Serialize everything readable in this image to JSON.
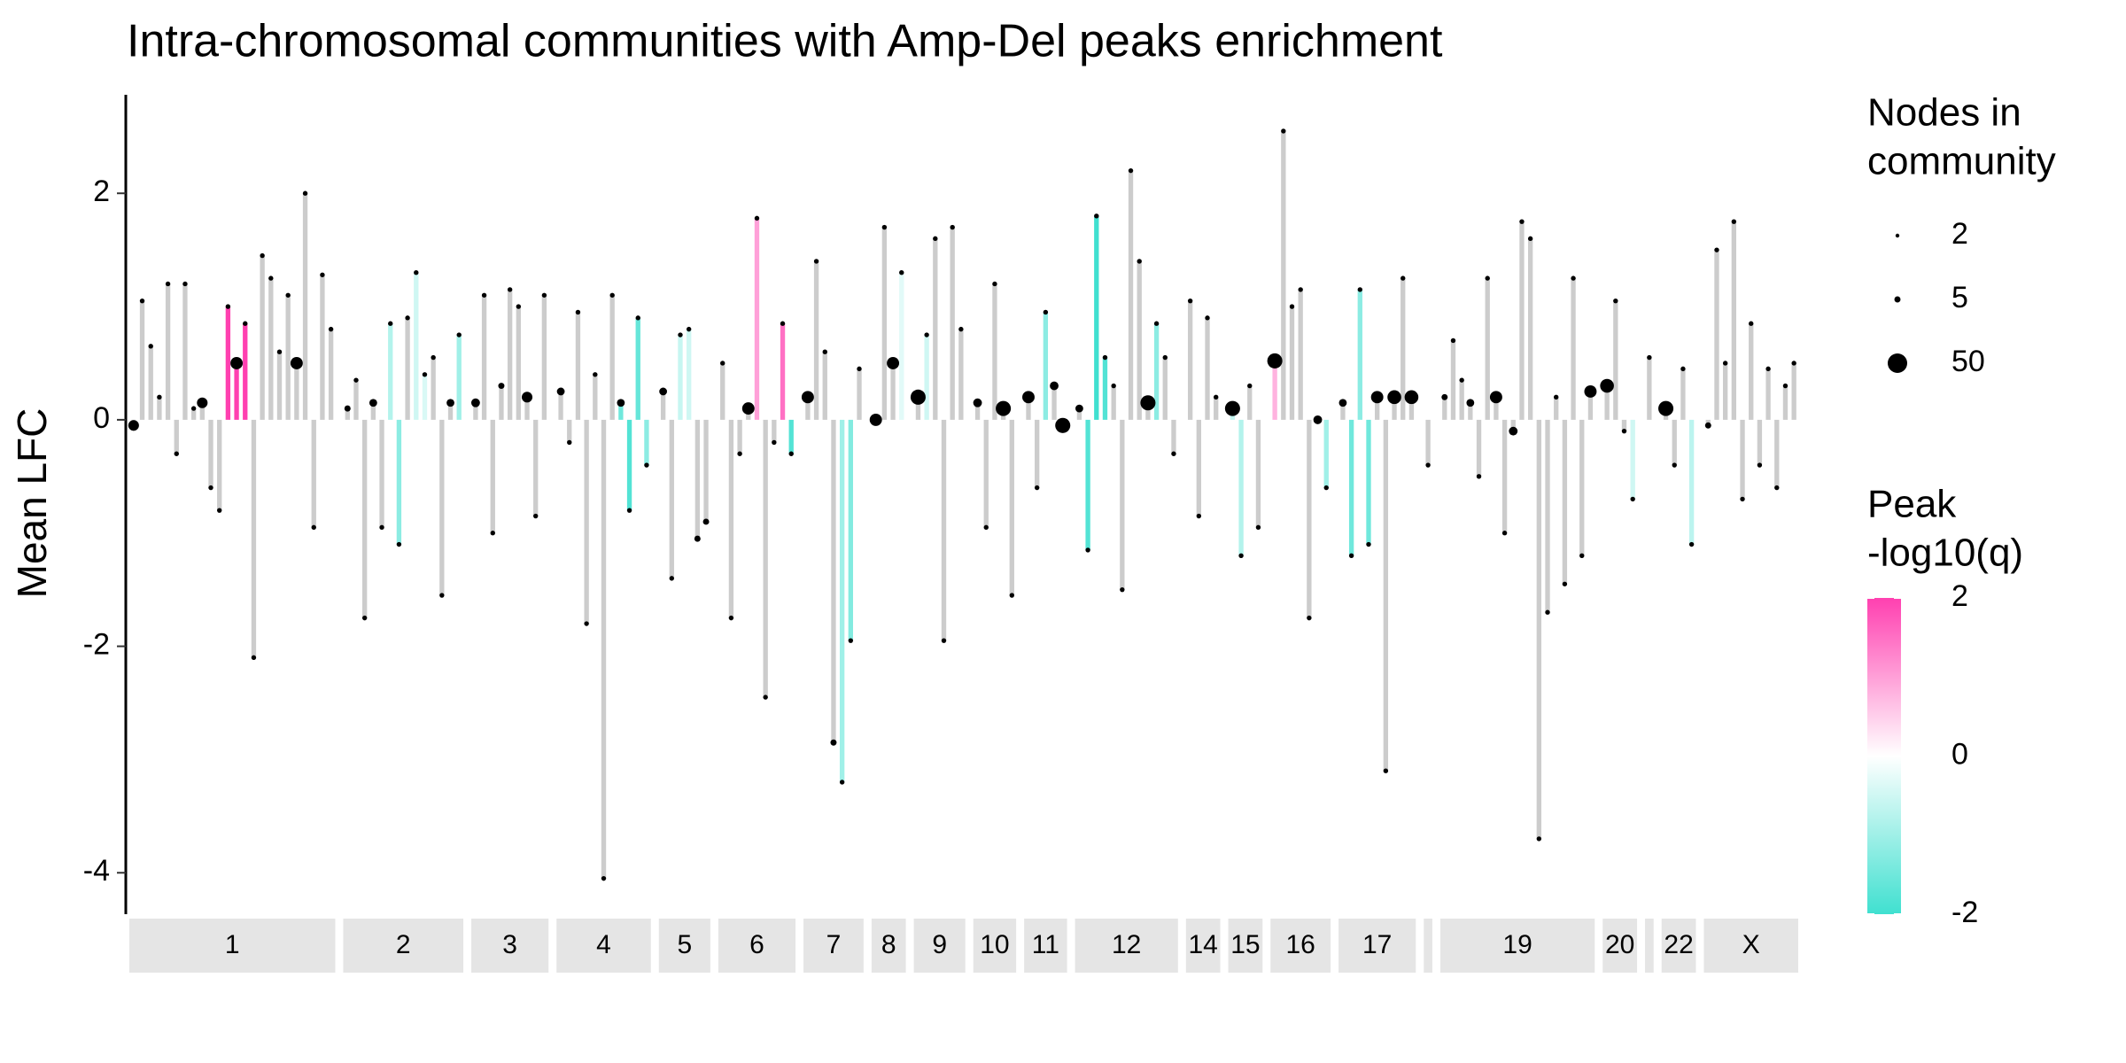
{
  "chart_data": {
    "type": "bar",
    "title": "Intra-chromosomal communities with Amp-Del peaks enrichment",
    "y_label": "Mean LFC",
    "ylim": [
      -4.35,
      2.87
    ],
    "yticks": [
      -4,
      -2,
      0,
      2
    ],
    "na_color": "#cccccc",
    "point_color": "#000000",
    "strip_color": "#e5e5e5",
    "size_legend": {
      "title": [
        "Nodes in",
        "community"
      ],
      "values": [
        2,
        5,
        50
      ]
    },
    "color_legend": {
      "title": [
        "Peak",
        "-log10(q)"
      ],
      "lim": [
        -2,
        2
      ],
      "ticks": [
        -2,
        0,
        2
      ],
      "colors": [
        "#40e0d0",
        "#ffffff",
        "#ff40b0"
      ]
    },
    "facets": [
      {
        "label": "1",
        "values": [
          -0.05,
          1.05,
          0.65,
          0.2,
          1.2,
          -0.3,
          1.2,
          0.1,
          0.15,
          -0.6,
          -0.8,
          1.0,
          0.5,
          0.85,
          -2.1,
          1.45,
          1.25,
          0.6,
          1.1,
          0.5,
          2.0,
          -0.95,
          1.28,
          0.8
        ],
        "nodes": [
          15,
          3,
          3,
          3,
          3,
          3,
          3,
          3,
          15,
          3,
          3,
          3,
          20,
          3,
          3,
          3,
          3,
          3,
          3,
          20,
          3,
          3,
          3,
          3
        ],
        "peaks": [
          null,
          null,
          null,
          null,
          null,
          null,
          null,
          null,
          null,
          null,
          null,
          2,
          2,
          2,
          null,
          null,
          null,
          null,
          null,
          null,
          null,
          null,
          null,
          null
        ]
      },
      {
        "label": "2",
        "values": [
          0.1,
          0.35,
          -1.75,
          0.15,
          -0.95,
          0.85,
          -1.1,
          0.9,
          1.3,
          0.4,
          0.55,
          -1.55,
          0.15,
          0.75
        ],
        "nodes": [
          5,
          3,
          3,
          8,
          3,
          3,
          3,
          3,
          3,
          3,
          3,
          3,
          8,
          3
        ],
        "peaks": [
          null,
          null,
          null,
          null,
          null,
          -0.8,
          -1.2,
          null,
          -0.5,
          -0.4,
          null,
          null,
          null,
          -1
        ]
      },
      {
        "label": "3",
        "values": [
          0.15,
          1.1,
          -1.0,
          0.3,
          1.15,
          1.0,
          0.2,
          -0.85,
          1.1
        ],
        "nodes": [
          10,
          3,
          3,
          5,
          3,
          3,
          15,
          3,
          3
        ],
        "peaks": [
          null,
          null,
          null,
          null,
          null,
          null,
          null,
          null,
          null
        ]
      },
      {
        "label": "4",
        "values": [
          0.25,
          -0.2,
          0.95,
          -1.8,
          0.4,
          -4.05,
          1.1,
          0.15,
          -0.8,
          0.9,
          -0.4
        ],
        "nodes": [
          8,
          3,
          3,
          3,
          3,
          3,
          3,
          8,
          3,
          3,
          3
        ],
        "peaks": [
          null,
          null,
          null,
          null,
          null,
          null,
          null,
          -1.5,
          -1.8,
          -1.6,
          -1.2
        ]
      },
      {
        "label": "5",
        "values": [
          0.25,
          -1.4,
          0.75,
          0.8,
          -1.05,
          -0.9
        ],
        "nodes": [
          8,
          3,
          3,
          3,
          5,
          5
        ],
        "peaks": [
          null,
          null,
          -0.6,
          -0.5,
          null,
          null
        ]
      },
      {
        "label": "6",
        "values": [
          0.5,
          -1.75,
          -0.3,
          0.1,
          1.78,
          -2.45,
          -0.2,
          0.85,
          -0.3
        ],
        "nodes": [
          3,
          3,
          3,
          20,
          3,
          3,
          3,
          3,
          3
        ],
        "peaks": [
          null,
          null,
          null,
          null,
          1,
          null,
          null,
          1.5,
          -1.8
        ]
      },
      {
        "label": "7",
        "values": [
          0.2,
          1.4,
          0.6,
          -2.85,
          -3.2,
          -1.95,
          0.45
        ],
        "nodes": [
          20,
          3,
          3,
          5,
          3,
          3,
          3
        ],
        "peaks": [
          null,
          null,
          null,
          null,
          -1,
          -1.3,
          null
        ]
      },
      {
        "label": "8",
        "values": [
          -0.0,
          1.7,
          0.5,
          1.3
        ],
        "nodes": [
          20,
          3,
          20,
          3
        ],
        "peaks": [
          null,
          null,
          null,
          -0.3
        ]
      },
      {
        "label": "9",
        "values": [
          0.2,
          0.75,
          1.6,
          -1.95,
          1.7,
          0.8
        ],
        "nodes": [
          30,
          3,
          3,
          3,
          3,
          3
        ],
        "peaks": [
          null,
          -0.5,
          null,
          null,
          null,
          null
        ]
      },
      {
        "label": "10",
        "values": [
          0.15,
          -0.95,
          1.2,
          0.1,
          -1.55
        ],
        "nodes": [
          10,
          3,
          3,
          30,
          3
        ],
        "peaks": [
          null,
          null,
          null,
          null,
          null
        ]
      },
      {
        "label": "11",
        "values": [
          0.2,
          -0.6,
          0.95,
          0.3,
          -0.05
        ],
        "nodes": [
          20,
          3,
          3,
          10,
          30
        ],
        "peaks": [
          null,
          null,
          -1.2,
          null,
          null
        ]
      },
      {
        "label": "12",
        "values": [
          0.1,
          -1.15,
          1.8,
          0.55,
          0.3,
          -1.5,
          2.2,
          1.4,
          0.15,
          0.85,
          0.55,
          -0.3
        ],
        "nodes": [
          8,
          3,
          3,
          3,
          3,
          3,
          3,
          3,
          30,
          3,
          3,
          3
        ],
        "peaks": [
          null,
          -1.8,
          -2,
          -1.8,
          null,
          null,
          null,
          null,
          null,
          -1.2,
          null,
          null
        ]
      },
      {
        "label": "14",
        "values": [
          1.05,
          -0.85,
          0.9,
          0.2
        ],
        "nodes": [
          3,
          3,
          3,
          3
        ],
        "peaks": [
          null,
          null,
          null,
          null
        ]
      },
      {
        "label": "15",
        "values": [
          0.1,
          -1.2,
          0.3,
          -0.95
        ],
        "nodes": [
          30,
          3,
          3,
          3
        ],
        "peaks": [
          -0.6,
          -0.8,
          null,
          null
        ]
      },
      {
        "label": "16",
        "values": [
          0.52,
          2.55,
          1.0,
          1.15,
          -1.75,
          0.0,
          -0.6
        ],
        "nodes": [
          30,
          3,
          3,
          3,
          3,
          10,
          3
        ],
        "peaks": [
          0.8,
          null,
          null,
          null,
          null,
          null,
          -1
        ]
      },
      {
        "label": "17",
        "values": [
          0.15,
          -1.2,
          1.15,
          -1.1,
          0.2,
          -3.1,
          0.2,
          1.25,
          0.2
        ],
        "nodes": [
          8,
          3,
          3,
          3,
          20,
          3,
          25,
          3,
          25
        ],
        "peaks": [
          null,
          -1.5,
          -1.2,
          -1.5,
          null,
          null,
          null,
          null,
          null
        ]
      },
      {
        "label": null,
        "values": [
          -0.4
        ],
        "nodes": [
          3
        ],
        "peaks": [
          null
        ]
      },
      {
        "label": "19",
        "values": [
          0.2,
          0.7,
          0.35,
          0.15,
          -0.5,
          1.25,
          0.2,
          -1.0,
          -0.1,
          1.75,
          1.6,
          -3.7,
          -1.7,
          0.2,
          -1.45,
          1.25,
          -1.2,
          0.25
        ],
        "nodes": [
          5,
          3,
          3,
          8,
          3,
          3,
          20,
          3,
          10,
          3,
          3,
          3,
          3,
          3,
          3,
          3,
          3,
          20
        ],
        "peaks": [
          null,
          null,
          null,
          null,
          null,
          null,
          null,
          null,
          null,
          null,
          null,
          null,
          null,
          null,
          null,
          null,
          null,
          null
        ]
      },
      {
        "label": "20",
        "values": [
          0.3,
          1.05,
          -0.1,
          -0.7
        ],
        "nodes": [
          25,
          3,
          3,
          3
        ],
        "peaks": [
          null,
          null,
          null,
          -0.5
        ]
      },
      {
        "label": null,
        "values": [
          0.55
        ],
        "nodes": [
          3
        ],
        "peaks": [
          null
        ]
      },
      {
        "label": "22",
        "values": [
          0.1,
          -0.4,
          0.45,
          -1.1
        ],
        "nodes": [
          30,
          3,
          3,
          3
        ],
        "peaks": [
          null,
          null,
          null,
          -0.7
        ]
      },
      {
        "label": "X",
        "values": [
          -0.05,
          1.5,
          0.5,
          1.75,
          -0.7,
          0.85,
          -0.4,
          0.45,
          -0.6,
          0.3,
          0.5
        ],
        "nodes": [
          5,
          3,
          3,
          3,
          3,
          3,
          3,
          3,
          3,
          3,
          3
        ],
        "peaks": [
          null,
          null,
          null,
          null,
          null,
          null,
          null,
          null,
          null,
          null,
          null
        ]
      }
    ]
  }
}
